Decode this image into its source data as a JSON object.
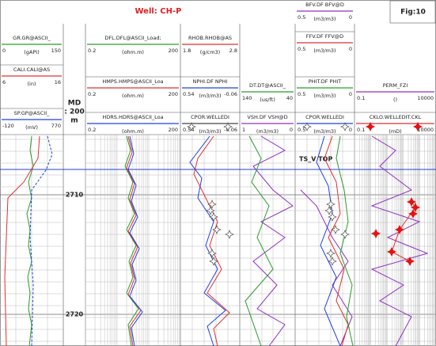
{
  "header": {
    "title": "Well: CH-P",
    "figure": "Fig:10",
    "depth_header": [
      "MD",
      ": 200",
      "m"
    ]
  },
  "tracks": [
    {
      "curves": [
        {
          "name": "GR.GR@ASCII_",
          "left": "0",
          "unit": "(gAPI)",
          "right": "150",
          "color": "#2a9a2a"
        },
        {
          "name": "CALI.CALI@AS",
          "left": "6",
          "unit": "(in)",
          "right": "16",
          "color": "#e03030"
        },
        {
          "name": "SP.GP@ASCII_",
          "left": "-120",
          "unit": "(mV)",
          "right": "770",
          "color": "#2040e0"
        }
      ]
    },
    {
      "curves": [
        {
          "name": "DFL.DFL@ASCII_Load;",
          "left": "0.2",
          "unit": "(ohm.m)",
          "right": "200",
          "color": "#2a9a2a"
        },
        {
          "name": "HMPS.HMPS@ASCII_Loa",
          "left": "0.2",
          "unit": "(ohm.m)",
          "right": "200",
          "color": "#e03030"
        },
        {
          "name": "HDRS.HDRS@ASCII_Loa",
          "left": "0.2",
          "unit": "(ohm.m)",
          "right": "200",
          "color": "#2040e0"
        }
      ]
    },
    {
      "curves": [
        {
          "name": "RHOB.RHOB@AS",
          "left": "1.8",
          "unit": "(g/cm3)",
          "right": "2.8",
          "color": "#e03030"
        },
        {
          "name": "NPHI.DF NPHI",
          "left": "0.54",
          "unit": "(m3/m3)",
          "right": "-0.06",
          "color": "#2040e0"
        },
        {
          "name": "CPOR.WELLEDI",
          "left": "0.54",
          "unit": "(m3/m3)",
          "right": "-0.06",
          "color": "#444444"
        }
      ]
    },
    {
      "curves": [
        {
          "name": "DT.DT@ASCII_",
          "left": "140",
          "unit": "(us/ft)",
          "right": "40",
          "color": "#2a9a2a"
        },
        {
          "name": "VSH.DF VSH@D",
          "left": "1",
          "unit": "(m3/m3)",
          "right": "0",
          "color": "#9030c0"
        }
      ]
    },
    {
      "curves": [
        {
          "name": "BFV.DF BFV@D",
          "left": "0.5",
          "unit": "(m3/m3)",
          "right": "0",
          "color": "#9030c0"
        },
        {
          "name": "FFV.DF FFV@D",
          "left": "0.5",
          "unit": "(m3/m3)",
          "right": "0",
          "color": "#e03030"
        },
        {
          "name": "PHIT.DF PHIT",
          "left": "0.5",
          "unit": "(m3/m3)",
          "right": "0",
          "color": "#2a9a2a"
        },
        {
          "name": "CPOR.WELLEDI",
          "left": "0.5",
          "unit": "(m3/m3)",
          "right": "0",
          "color": "#2040e0"
        }
      ]
    },
    {
      "curves": [
        {
          "name": "PERM_FZI",
          "left": "0.1",
          "unit": "()",
          "right": "10000",
          "color": "#9030c0"
        },
        {
          "name": "CKLO.WELLEDIT.CKL",
          "left": "0.1",
          "unit": "(mD)",
          "right": "10000",
          "color": "#e03030"
        }
      ]
    }
  ],
  "marker": "TS_V TOP",
  "depths": [
    "2710",
    "2720"
  ]
}
